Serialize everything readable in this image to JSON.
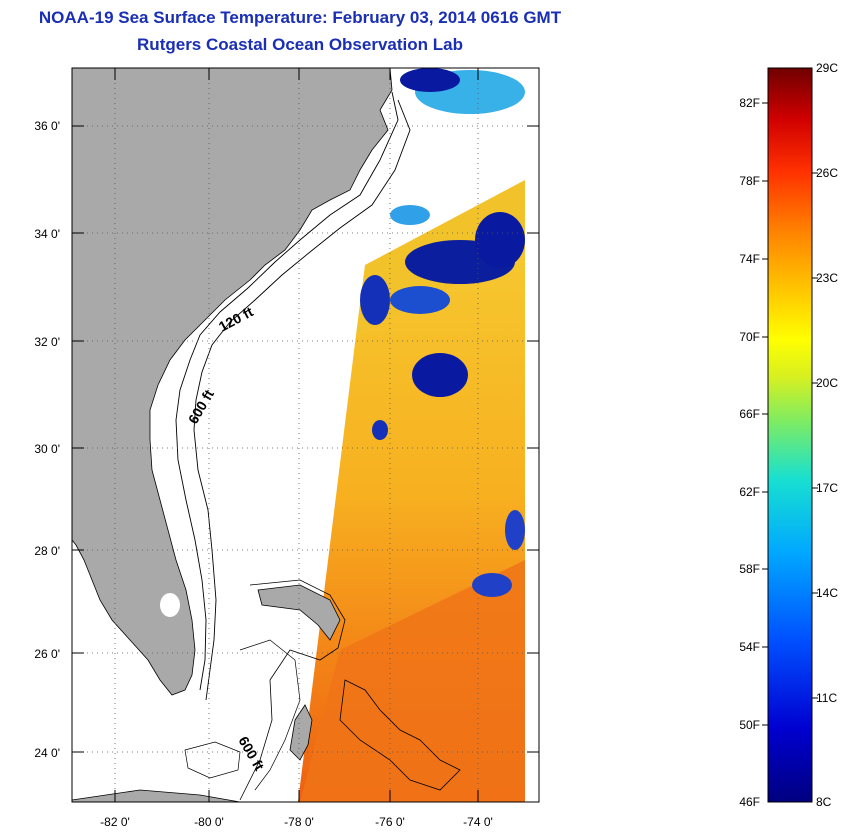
{
  "header": {
    "title": "NOAA-19 Sea Surface Temperature:  February 03, 2014 0616 GMT",
    "subtitle": "Rutgers Coastal Ocean Observation Lab"
  },
  "map": {
    "lat_labels": [
      "36 0'",
      "34 0'",
      "32 0'",
      "30 0'",
      "28 0'",
      "26 0'",
      "24 0'"
    ],
    "lon_labels": [
      "-82 0'",
      "-80 0'",
      "-78 0'",
      "-76 0'",
      "-74 0'"
    ],
    "contour_labels": [
      "120 ft",
      "600 ft",
      "600 ft"
    ],
    "colors": {
      "land": "#a9a9a9",
      "ocean_nodata": "#ffffff",
      "warm": "#f06a10",
      "mild": "#f4b41a",
      "cold_cloud": "#0a1aa0"
    }
  },
  "colorbar": {
    "fahrenheit_labels": [
      "82F",
      "78F",
      "74F",
      "70F",
      "66F",
      "62F",
      "58F",
      "54F",
      "50F",
      "46F"
    ],
    "celsius_labels": [
      "29C",
      "26C",
      "23C",
      "20C",
      "17C",
      "14C",
      "11C",
      "8C"
    ],
    "colors": [
      "#7a0000",
      "#c00000",
      "#ff2a00",
      "#ff7a00",
      "#ffc000",
      "#ffff00",
      "#a8e63a",
      "#3fd7a0",
      "#00d0f0",
      "#0090ff",
      "#0040ff",
      "#0000c8",
      "#000080"
    ]
  }
}
